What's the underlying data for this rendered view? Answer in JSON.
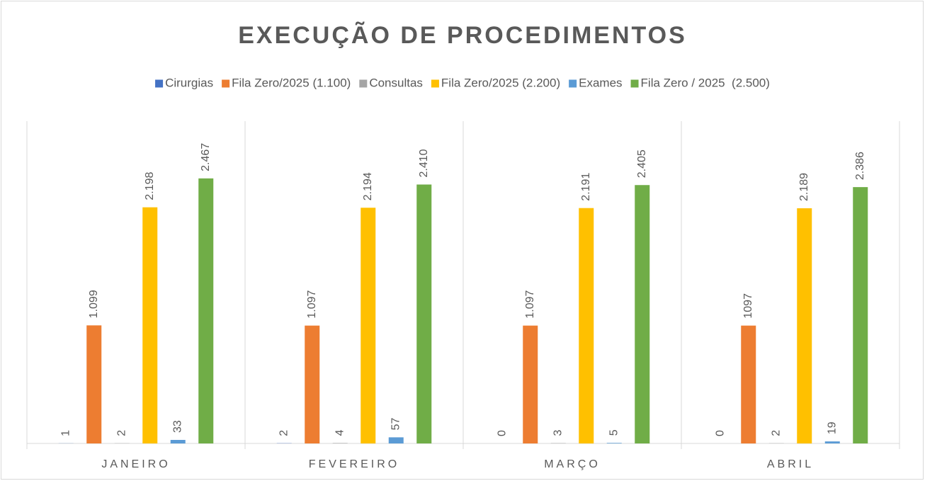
{
  "chart_data": {
    "type": "bar",
    "title": "EXECUÇÃO DE PROCEDIMENTOS",
    "categories": [
      "JANEIRO",
      "FEVEREIRO",
      "MARÇO",
      "ABRIL"
    ],
    "series": [
      {
        "name": "Cirurgias",
        "color": "#4472c4",
        "values": [
          1,
          2,
          0,
          0
        ],
        "value_labels": [
          "1",
          "2",
          "0",
          "0"
        ]
      },
      {
        "name": "Fila Zero/2025 (1.100)",
        "color": "#ed7d31",
        "values": [
          1099,
          1097,
          1097,
          1097
        ],
        "value_labels": [
          "1.099",
          "1.097",
          "1.097",
          "1097"
        ]
      },
      {
        "name": "Consultas",
        "color": "#a5a5a5",
        "values": [
          2,
          4,
          3,
          2
        ],
        "value_labels": [
          "2",
          "4",
          "3",
          "2"
        ]
      },
      {
        "name": "Fila Zero/2025 (2.200)",
        "color": "#ffc000",
        "values": [
          2198,
          2194,
          2191,
          2189
        ],
        "value_labels": [
          "2.198",
          "2.194",
          "2.191",
          "2.189"
        ]
      },
      {
        "name": "Exames",
        "color": "#5b9bd5",
        "values": [
          33,
          57,
          5,
          19
        ],
        "value_labels": [
          "33",
          "57",
          "5",
          "19"
        ]
      },
      {
        "name": "Fila Zero / 2025  (2.500)",
        "color": "#70ad47",
        "values": [
          2467,
          2410,
          2405,
          2386
        ],
        "value_labels": [
          "2.467",
          "2.410",
          "2.405",
          "2.386"
        ]
      }
    ],
    "ylim": [
      0,
      3000
    ],
    "legend": "top"
  }
}
